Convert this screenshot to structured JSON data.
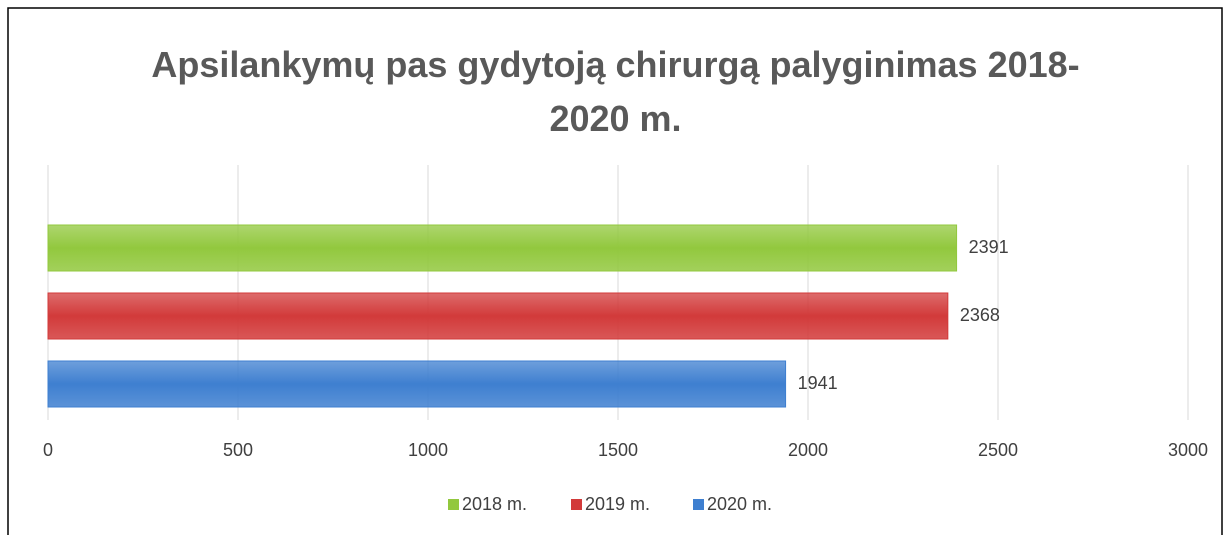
{
  "chart_data": {
    "type": "bar",
    "orientation": "horizontal",
    "title": "Apsilankymų pas gydytoją chirurgą palyginimas 2018-2020 m.",
    "series": [
      {
        "name": "2018 m.",
        "color": "#92c83e",
        "values": [
          2391
        ]
      },
      {
        "name": "2019 m.",
        "color": "#d23a3a",
        "values": [
          2368
        ]
      },
      {
        "name": "2020 m.",
        "color": "#3e7fd0",
        "values": [
          1941
        ]
      }
    ],
    "xlim": [
      0,
      3000
    ],
    "xticks": [
      0,
      500,
      1000,
      1500,
      2000,
      2500,
      3000
    ],
    "grid": true,
    "legend": "bottom"
  }
}
